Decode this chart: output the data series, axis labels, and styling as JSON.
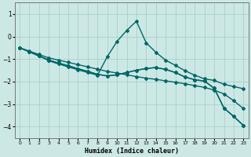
{
  "xlabel": "Humidex (Indice chaleur)",
  "background_color": "#cce8e5",
  "grid_color": "#aacfcc",
  "line_color": "#006666",
  "xlim": [
    -0.5,
    23.5
  ],
  "ylim": [
    -4.5,
    1.5
  ],
  "yticks": [
    1,
    0,
    -1,
    -2,
    -3,
    -4
  ],
  "xticks": [
    0,
    1,
    2,
    3,
    4,
    5,
    6,
    7,
    8,
    9,
    10,
    11,
    12,
    13,
    14,
    15,
    16,
    17,
    18,
    19,
    20,
    21,
    22,
    23
  ],
  "series": [
    {
      "x": [
        0,
        1,
        2,
        3,
        4,
        5,
        6,
        7,
        8,
        9,
        10,
        11,
        12,
        13,
        14,
        15,
        16,
        17,
        18,
        19,
        20,
        21,
        22,
        23
      ],
      "y": [
        -0.5,
        -0.65,
        -0.8,
        -0.95,
        -1.05,
        -1.15,
        -1.25,
        -1.35,
        -1.45,
        -1.55,
        -1.62,
        -1.7,
        -1.78,
        -1.85,
        -1.9,
        -1.97,
        -2.03,
        -2.1,
        -2.18,
        -2.26,
        -2.38,
        -2.55,
        -2.85,
        -3.2
      ],
      "marker": "D",
      "markersize": 2.0,
      "linewidth": 1.0
    },
    {
      "x": [
        0,
        1,
        2,
        3,
        4,
        5,
        6,
        7,
        8,
        9,
        10,
        11,
        12,
        13,
        14,
        15,
        16,
        17,
        18,
        19,
        20,
        21,
        22,
        23
      ],
      "y": [
        -0.5,
        -0.68,
        -0.87,
        -1.05,
        -1.18,
        -1.3,
        -1.43,
        -1.55,
        -1.68,
        -1.75,
        -1.7,
        -1.6,
        -1.5,
        -1.42,
        -1.38,
        -1.46,
        -1.6,
        -1.8,
        -1.92,
        -1.98,
        -2.3,
        -3.18,
        -3.55,
        -3.95
      ],
      "marker": "D",
      "markersize": 2.0,
      "linewidth": 1.0
    },
    {
      "x": [
        0,
        2,
        3,
        4,
        5,
        6,
        7,
        8,
        9,
        10,
        11,
        12,
        13,
        14,
        15,
        16,
        17,
        18,
        19,
        20,
        21,
        22,
        23
      ],
      "y": [
        -0.5,
        -0.85,
        -1.08,
        -1.22,
        -1.35,
        -1.48,
        -1.6,
        -1.72,
        -0.9,
        -0.22,
        0.27,
        0.68,
        -0.28,
        -0.7,
        -1.05,
        -1.28,
        -1.52,
        -1.72,
        -1.88,
        -1.95,
        -2.12,
        -2.22,
        -2.32
      ],
      "marker": "D",
      "markersize": 2.0,
      "linewidth": 1.0
    },
    {
      "x": [
        0,
        1,
        2,
        3,
        4,
        5,
        6,
        7,
        8,
        9,
        10,
        11,
        12,
        13,
        14,
        15,
        16,
        17,
        18,
        19,
        20,
        21,
        22,
        23
      ],
      "y": [
        -0.5,
        -0.68,
        -0.87,
        -1.05,
        -1.18,
        -1.3,
        -1.43,
        -1.55,
        -1.68,
        -1.75,
        -1.7,
        -1.6,
        -1.5,
        -1.42,
        -1.38,
        -1.46,
        -1.6,
        -1.8,
        -1.92,
        -1.98,
        -2.3,
        -3.18,
        -3.55,
        -3.95
      ],
      "marker": "D",
      "markersize": 2.0,
      "linewidth": 1.0
    }
  ]
}
